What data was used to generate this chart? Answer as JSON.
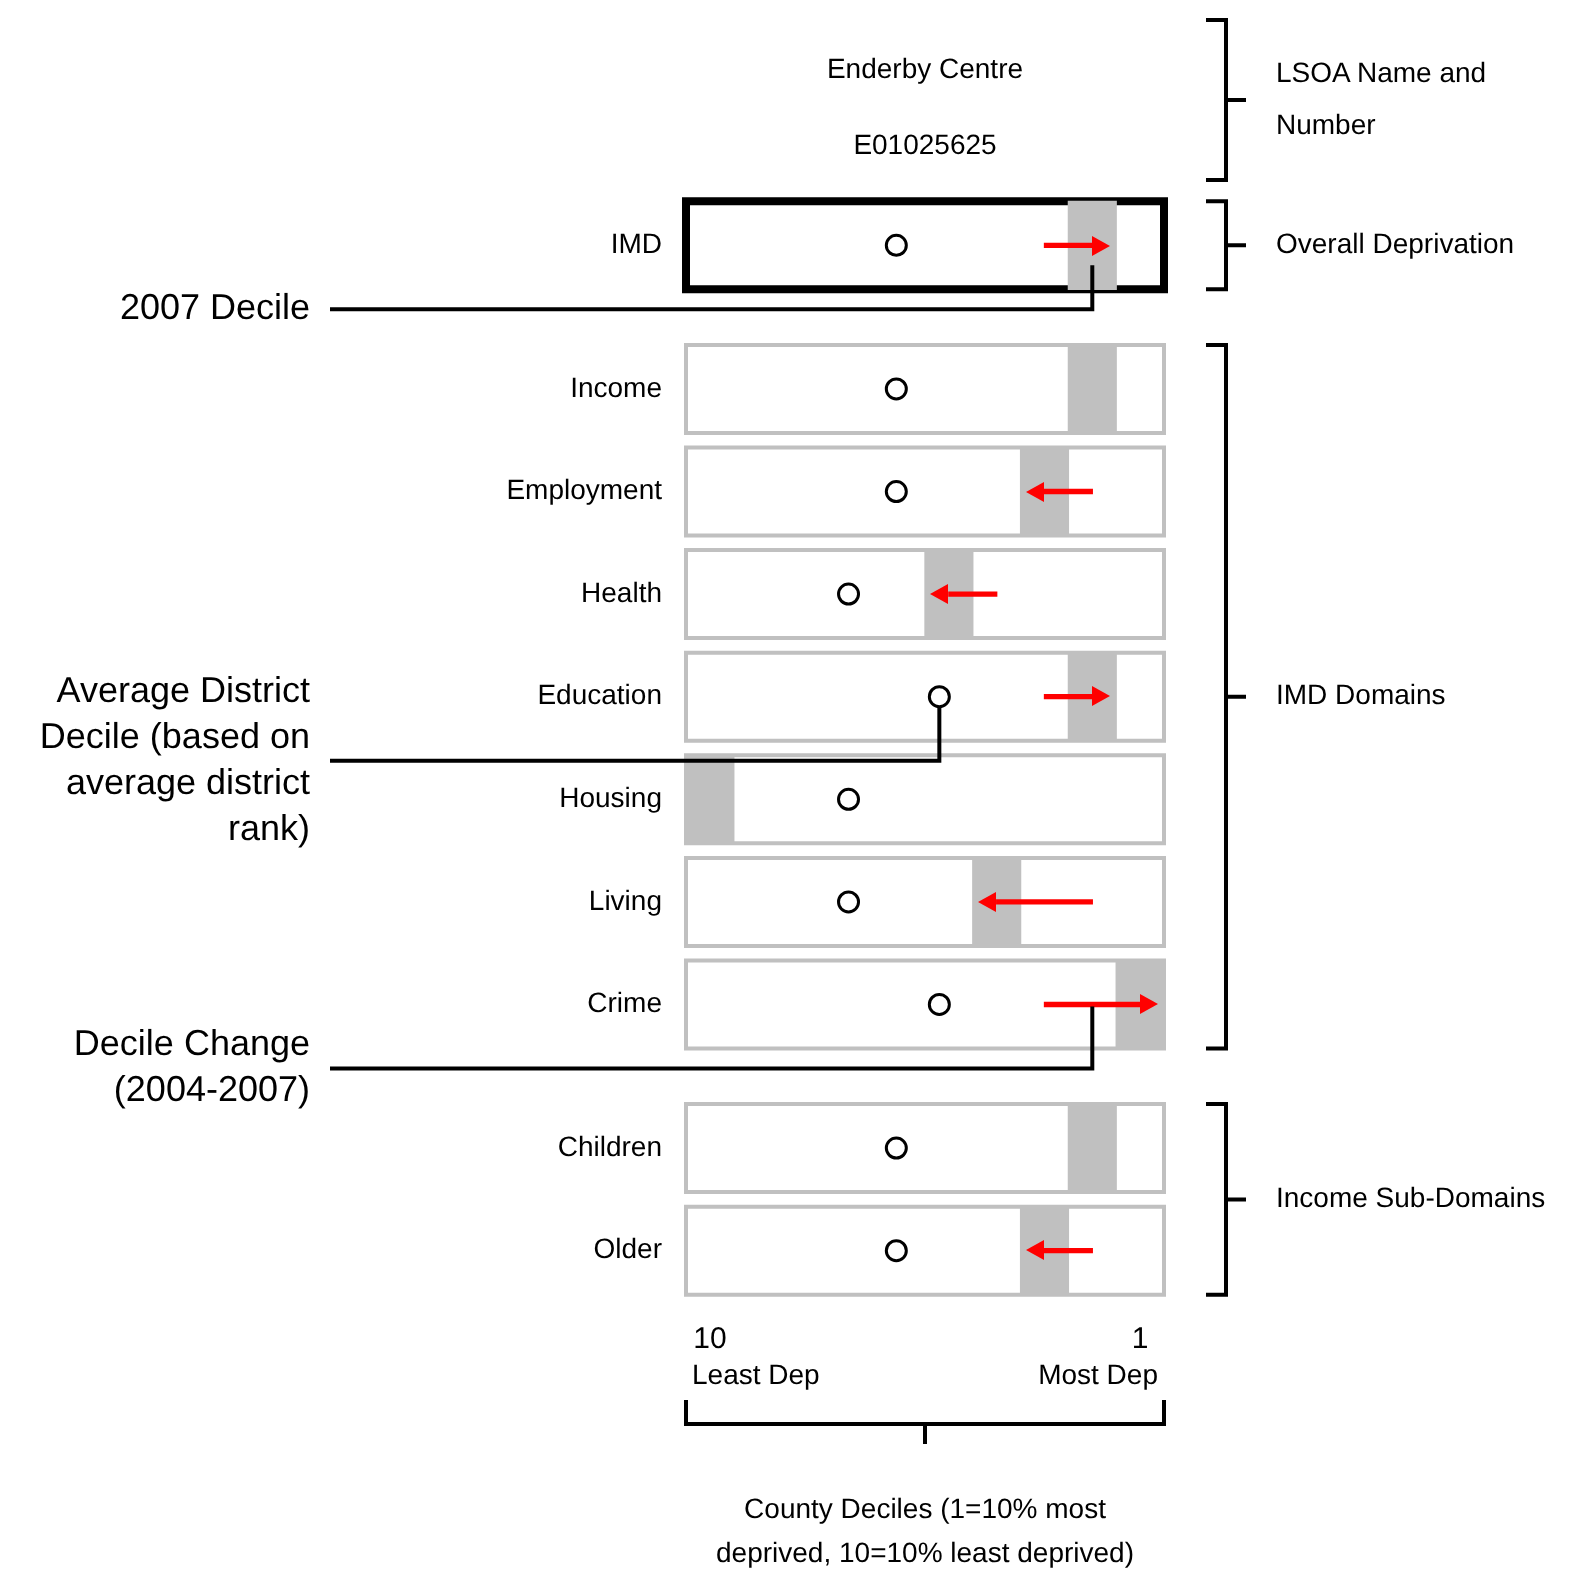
{
  "chart_data": {
    "type": "bar",
    "orientation": "horizontal",
    "title": "Enderby Centre",
    "subtitle": "E01025625",
    "categories": [
      "IMD",
      "Income",
      "Employment",
      "Health",
      "Education",
      "Housing",
      "Living",
      "Crime",
      "Children",
      "Older"
    ],
    "series": [
      {
        "name": "2007 Decile",
        "type": "bar",
        "color": "#c0c0c0",
        "base": [
          1.5,
          1.5,
          2.5,
          4.5,
          1.5,
          9.5,
          3.5,
          0.5,
          1.5,
          2.5
        ],
        "values": [
          1,
          1,
          1,
          1,
          1,
          1,
          1,
          1,
          1,
          1
        ]
      },
      {
        "name": "Average District Decile (based on average district rank)",
        "type": "scatter",
        "marker": "circle",
        "color": "#000000",
        "values": [
          6.1,
          6.1,
          6.1,
          7.1,
          5.2,
          7.1,
          7.1,
          5.2,
          6.1,
          6.1
        ]
      },
      {
        "name": "Decile Change (2004-2007)",
        "type": "bar",
        "color": "#ff0000",
        "base": [
          3,
          null,
          2,
          4,
          3,
          null,
          2,
          3,
          null,
          2
        ],
        "values": [
          -1,
          null,
          1,
          1,
          -1,
          null,
          2,
          -2,
          null,
          1
        ]
      }
    ],
    "xlim": [
      10.5,
      0.5
    ],
    "xticks": [
      10,
      1
    ],
    "legend": "left",
    "annotations": [
      "Least Dep",
      "Most Dep",
      "County Deciles (1=10% most deprived, 10=10% least deprived)",
      "LSOA Name and Number",
      "Overall Deprivation",
      "IMD Domains",
      "Income Sub-Domains"
    ]
  }
}
